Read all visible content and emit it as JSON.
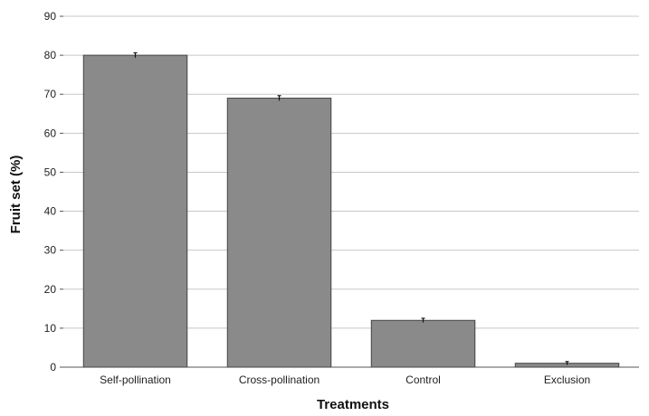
{
  "chart_data": {
    "type": "bar",
    "title": "",
    "xlabel": "Treatments",
    "ylabel": "Fruit set (%)",
    "categories": [
      "Self-pollination",
      "Cross-pollination",
      "Control",
      "Exclusion"
    ],
    "values": [
      80,
      69,
      12,
      1
    ],
    "errors": [
      0.4,
      0.4,
      0.3,
      0.2
    ],
    "ylim": [
      0,
      90
    ],
    "yticks": [
      0,
      10,
      20,
      30,
      40,
      50,
      60,
      70,
      80,
      90
    ],
    "ytick_labels": [
      "0",
      "10",
      "20",
      "30",
      "40",
      "50",
      "60",
      "70",
      "80",
      "90"
    ],
    "grid": true,
    "legend": "none",
    "colors": {
      "bar": "#8a8a8a",
      "grid": "#c8c8c8",
      "text": "#222222"
    }
  }
}
